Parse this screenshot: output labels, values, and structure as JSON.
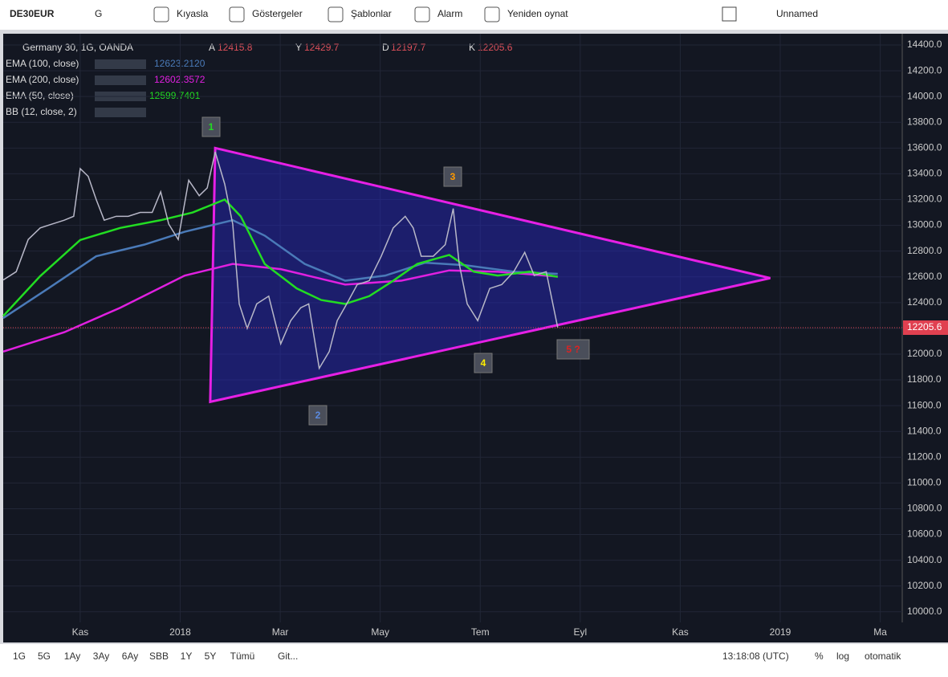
{
  "toolbar": {
    "symbol": "DE30EUR",
    "interval": "G",
    "items": [
      "Kıyasla",
      "Göstergeler",
      "Şablonlar",
      "Alarm",
      "Yeniden oynat"
    ],
    "layout": "Unnamed"
  },
  "legend": {
    "title": "Germany 30, 1G, OANDA",
    "ohlc": [
      {
        "key": "A",
        "value": "12415.8"
      },
      {
        "key": "Y",
        "value": "12429.7"
      },
      {
        "key": "D",
        "value": "12197.7"
      },
      {
        "key": "K",
        "value": "12205.6"
      }
    ],
    "indicators": [
      {
        "name": "EMA (100, close)",
        "value": "12623.2120",
        "color": "#4a7ab8"
      },
      {
        "name": "EMA (200, close)",
        "value": "12602.3572",
        "color": "#e020e0"
      },
      {
        "name": "EMA (50, close)",
        "value": "12599.7401",
        "color": "#22dd22"
      },
      {
        "name": "BB (12, close, 2)"
      }
    ]
  },
  "chart_data": {
    "type": "line",
    "ylim": [
      9980,
      14400
    ],
    "xlim": [
      -1.54,
      16.44
    ],
    "yticks": [
      {
        "value": 14400,
        "label": "14400.0"
      },
      {
        "value": 14200,
        "label": "14200.0"
      },
      {
        "value": 14000,
        "label": "14000.0"
      },
      {
        "value": 13800,
        "label": "13800.0"
      },
      {
        "value": 13600,
        "label": "13600.0"
      },
      {
        "value": 13400,
        "label": "13400.0"
      },
      {
        "value": 13200,
        "label": "13200.0"
      },
      {
        "value": 13000,
        "label": "13000.0"
      },
      {
        "value": 12800,
        "label": "12800.0"
      },
      {
        "value": 12600,
        "label": "12600.0"
      },
      {
        "value": 12400,
        "label": "12400.0"
      },
      {
        "value": 12200,
        "label": "12200.0"
      },
      {
        "value": 12000,
        "label": "12000.0"
      },
      {
        "value": 11800,
        "label": "11800.0"
      },
      {
        "value": 11600,
        "label": "11600.0"
      },
      {
        "value": 11400,
        "label": "11400.0"
      },
      {
        "value": 11200,
        "label": "11200.0"
      },
      {
        "value": 11000,
        "label": "11000.0"
      },
      {
        "value": 10800,
        "label": "10800.0"
      },
      {
        "value": 10600,
        "label": "10600.0"
      },
      {
        "value": 10400,
        "label": "10400.0"
      },
      {
        "value": 10200,
        "label": "10200.0"
      },
      {
        "value": 10000,
        "label": "10000.0"
      }
    ],
    "xticks": [
      {
        "value": 0,
        "label": "Kas"
      },
      {
        "value": 2,
        "label": "2018"
      },
      {
        "value": 4,
        "label": "Mar"
      },
      {
        "value": 6,
        "label": "May"
      },
      {
        "value": 8,
        "label": "Tem"
      },
      {
        "value": 10,
        "label": "Eyl"
      },
      {
        "value": 12,
        "label": "Kas"
      },
      {
        "value": 14,
        "label": "2019"
      },
      {
        "value": 16,
        "label": "Ma"
      }
    ],
    "grid": true,
    "series": [
      {
        "name": "Germany 30",
        "color": "#b8b8c8",
        "x": [
          -1.54,
          -1.28,
          -1.04,
          -0.8,
          -0.56,
          -0.32,
          -0.13,
          0,
          0.16,
          0.32,
          0.48,
          0.72,
          0.96,
          1.2,
          1.44,
          1.61,
          1.77,
          1.96,
          2.17,
          2.38,
          2.54,
          2.7,
          2.89,
          3.05,
          3.18,
          3.34,
          3.53,
          3.77,
          4.01,
          4.21,
          4.41,
          4.57,
          4.78,
          4.98,
          5.14,
          5.33,
          5.54,
          5.78,
          6.02,
          6.26,
          6.5,
          6.66,
          6.82,
          7.06,
          7.3,
          7.46,
          7.58,
          7.74,
          7.95,
          8.19,
          8.43,
          8.67,
          8.89,
          9.08,
          9.32,
          9.55
        ],
        "values": [
          12576,
          12640,
          12890,
          12980,
          13010,
          13040,
          13070,
          13440,
          13380,
          13200,
          13040,
          13070,
          13070,
          13100,
          13100,
          13260,
          13010,
          12890,
          13350,
          13230,
          13290,
          13570,
          13320,
          13010,
          12390,
          12200,
          12390,
          12450,
          12080,
          12260,
          12360,
          12390,
          11890,
          12020,
          12260,
          12390,
          12540,
          12570,
          12760,
          12980,
          13070,
          12980,
          12760,
          12760,
          12850,
          13130,
          12700,
          12390,
          12260,
          12510,
          12540,
          12640,
          12790,
          12610,
          12640,
          12205.6
        ]
      },
      {
        "name": "EMA (50, close)",
        "color": "#22dd22",
        "x": [
          -1.54,
          -0.8,
          0,
          0.8,
          1.61,
          2.25,
          2.89,
          3.21,
          3.69,
          4.33,
          4.82,
          5.3,
          5.78,
          6.26,
          6.74,
          7.38,
          7.87,
          8.35,
          8.99,
          9.55
        ],
        "values": [
          12296,
          12606,
          12886,
          12980,
          13040,
          13100,
          13200,
          13070,
          12700,
          12510,
          12420,
          12390,
          12450,
          12570,
          12700,
          12770,
          12640,
          12610,
          12640,
          12599.7
        ]
      },
      {
        "name": "EMA (100, close)",
        "color": "#4a7ab8",
        "x": [
          -1.54,
          -0.64,
          0.32,
          1.28,
          2.09,
          3.05,
          3.69,
          4.49,
          5.3,
          6.1,
          6.9,
          7.7,
          8.67,
          9.55
        ],
        "values": [
          12280,
          12510,
          12760,
          12850,
          12950,
          13040,
          12920,
          12700,
          12570,
          12610,
          12710,
          12690,
          12640,
          12623.2
        ]
      },
      {
        "name": "EMA (200, close)",
        "color": "#e020e0",
        "x": [
          -1.54,
          -0.32,
          0.8,
          2.09,
          3.05,
          4.01,
          5.3,
          6.42,
          7.38,
          8.35,
          9.55
        ],
        "values": [
          12020,
          12170,
          12360,
          12610,
          12700,
          12660,
          12540,
          12570,
          12650,
          12640,
          12602.4
        ]
      }
    ],
    "triangle": {
      "color": "#e620e6",
      "x": [
        2.7,
        2.6,
        13.8
      ],
      "values": [
        13600,
        11630,
        12590
      ]
    },
    "last_price": {
      "value": 12205.6,
      "label": "12205.6"
    },
    "annotations": [
      "1",
      "2",
      "3",
      "4",
      "5 ?"
    ]
  },
  "bottombar": {
    "ranges": [
      "1G",
      "5G",
      "1Ay",
      "3Ay",
      "6Ay",
      "SBB",
      "1Y",
      "5Y",
      "Tümü"
    ],
    "goto": "Git...",
    "time": "13:18:08 (UTC)",
    "percent": "%",
    "log": "log",
    "auto": "otomatik"
  }
}
